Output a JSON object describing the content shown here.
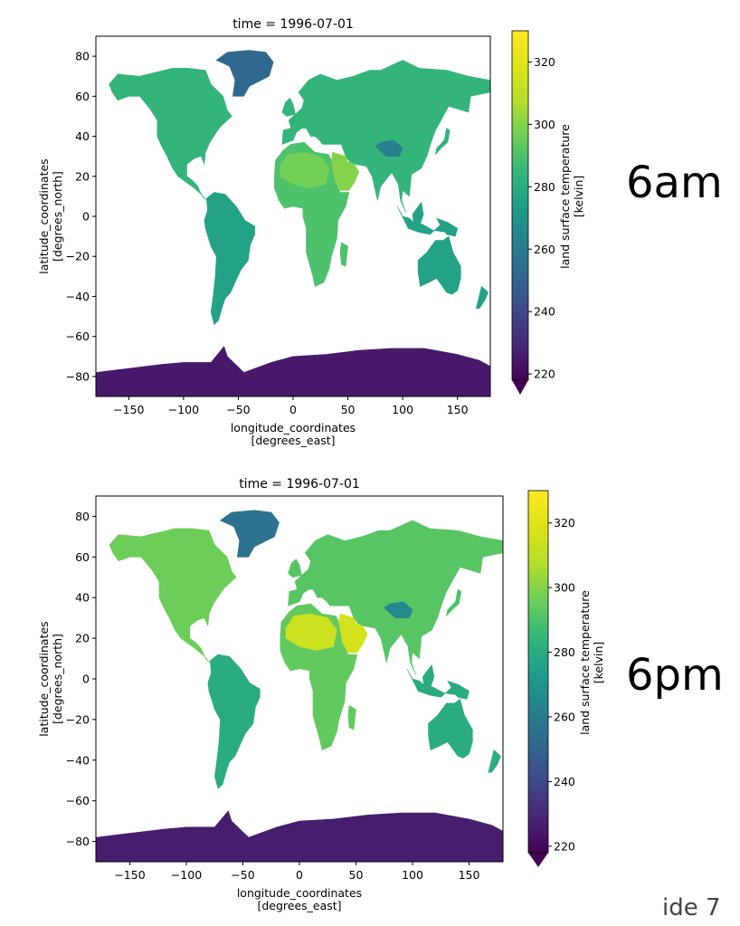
{
  "labels": {
    "top_time": "6am",
    "bottom_time": "6pm",
    "slide": "ide  7"
  },
  "chart_data": [
    {
      "type": "heatmap",
      "title": "time = 1996-07-01",
      "xlabel": "longitude_coordinates",
      "xlabel_unit": "[degrees_east]",
      "ylabel": "latitude_coordinates",
      "ylabel_unit": "[degrees_north]",
      "xlim": [
        -180,
        180
      ],
      "ylim": [
        -90,
        90
      ],
      "xticks": [
        -150,
        -100,
        -50,
        0,
        50,
        100,
        150
      ],
      "yticks": [
        -80,
        -60,
        -40,
        -20,
        0,
        20,
        40,
        60,
        80
      ],
      "colorbar": {
        "label": "land surface temperature",
        "unit": "[kelvin]",
        "colormap": "viridis",
        "range": [
          218,
          330
        ],
        "extend": "min",
        "ticks": [
          220,
          240,
          260,
          280,
          300,
          320
        ]
      },
      "regions": [
        {
          "name": "North America",
          "value": 284
        },
        {
          "name": "Greenland",
          "value": 252
        },
        {
          "name": "South America",
          "value": 276
        },
        {
          "name": "Africa",
          "value": 290
        },
        {
          "name": "Sahara",
          "value": 297
        },
        {
          "name": "Arabia",
          "value": 300
        },
        {
          "name": "Europe",
          "value": 284
        },
        {
          "name": "Asia",
          "value": 283
        },
        {
          "name": "Tibet",
          "value": 262
        },
        {
          "name": "Australia",
          "value": 276
        },
        {
          "name": "Antarctica",
          "value": 225
        }
      ]
    },
    {
      "type": "heatmap",
      "title": "time = 1996-07-01",
      "xlabel": "longitude_coordinates",
      "xlabel_unit": "[degrees_east]",
      "ylabel": "latitude_coordinates",
      "ylabel_unit": "[degrees_north]",
      "xlim": [
        -180,
        180
      ],
      "ylim": [
        -90,
        90
      ],
      "xticks": [
        -150,
        -100,
        -50,
        0,
        50,
        100,
        150
      ],
      "yticks": [
        -80,
        -60,
        -40,
        -20,
        0,
        20,
        40,
        60,
        80
      ],
      "colorbar": {
        "label": "land surface temperature",
        "unit": "[kelvin]",
        "colormap": "viridis",
        "range": [
          218,
          330
        ],
        "extend": "min",
        "ticks": [
          220,
          240,
          260,
          280,
          300,
          320
        ]
      },
      "regions": [
        {
          "name": "North America",
          "value": 296
        },
        {
          "name": "Greenland",
          "value": 256
        },
        {
          "name": "South America",
          "value": 280
        },
        {
          "name": "Africa",
          "value": 294
        },
        {
          "name": "Sahara",
          "value": 314
        },
        {
          "name": "Arabia",
          "value": 316
        },
        {
          "name": "Europe",
          "value": 292
        },
        {
          "name": "Asia",
          "value": 290
        },
        {
          "name": "Tibet",
          "value": 265
        },
        {
          "name": "Australia",
          "value": 280
        },
        {
          "name": "Antarctica",
          "value": 226
        }
      ]
    }
  ]
}
